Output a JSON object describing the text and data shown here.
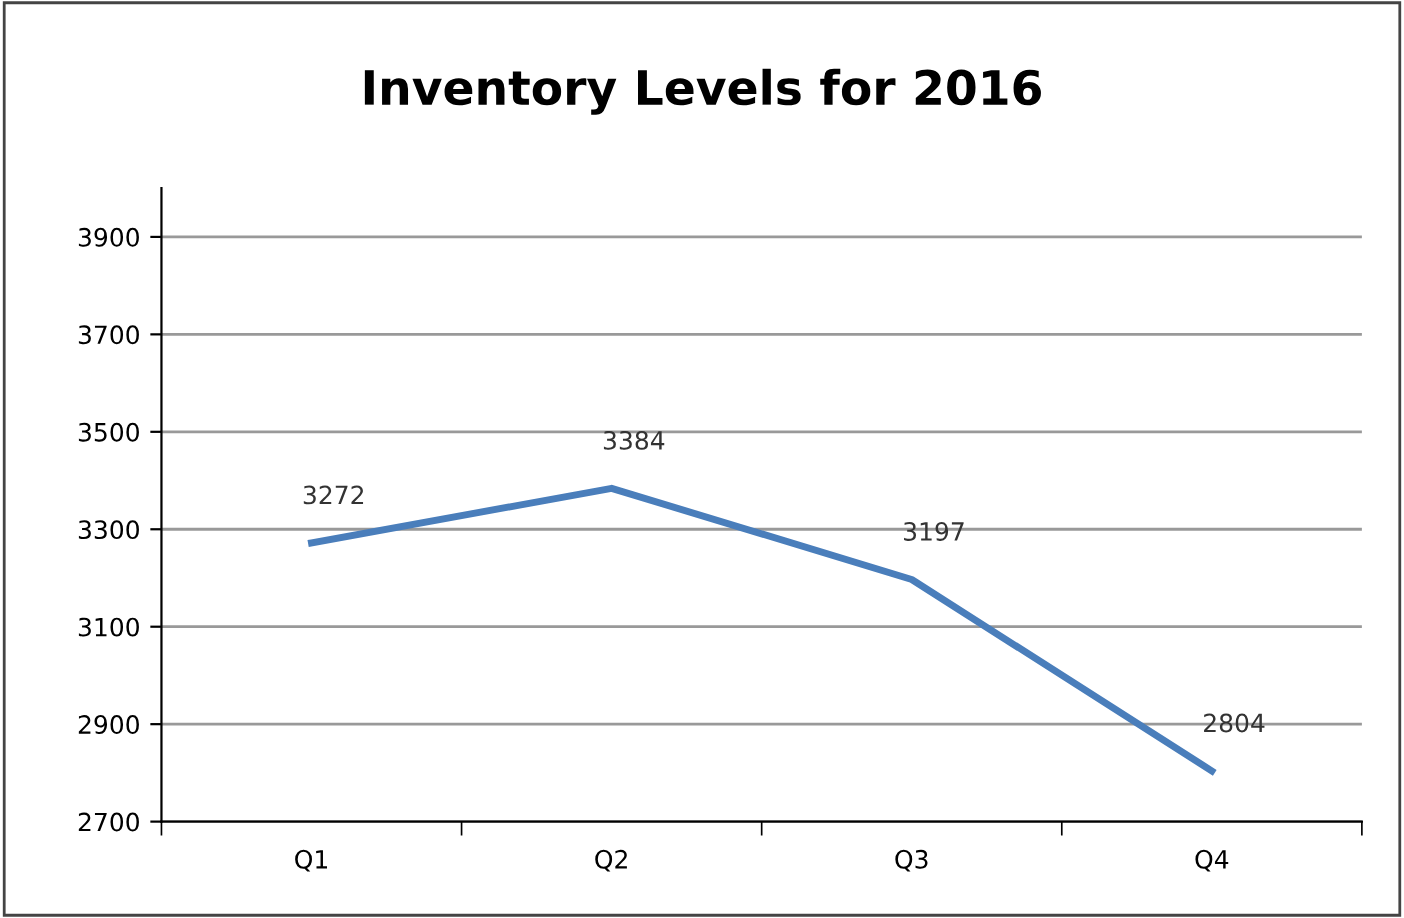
{
  "chart_data": {
    "type": "line",
    "title": "Inventory Levels for 2016",
    "categories": [
      "Q1",
      "Q2",
      "Q3",
      "Q4"
    ],
    "series": [
      {
        "color": "#4a7ebb",
        "values": [
          3272,
          3384,
          3197,
          2804
        ]
      }
    ],
    "ylim": [
      2700,
      4000
    ],
    "yticks": [
      2700,
      2900,
      3100,
      3300,
      3500,
      3700,
      3900
    ],
    "grid": "y",
    "data_labels": true,
    "marker": "none",
    "line_style": "solid",
    "legend": false
  }
}
